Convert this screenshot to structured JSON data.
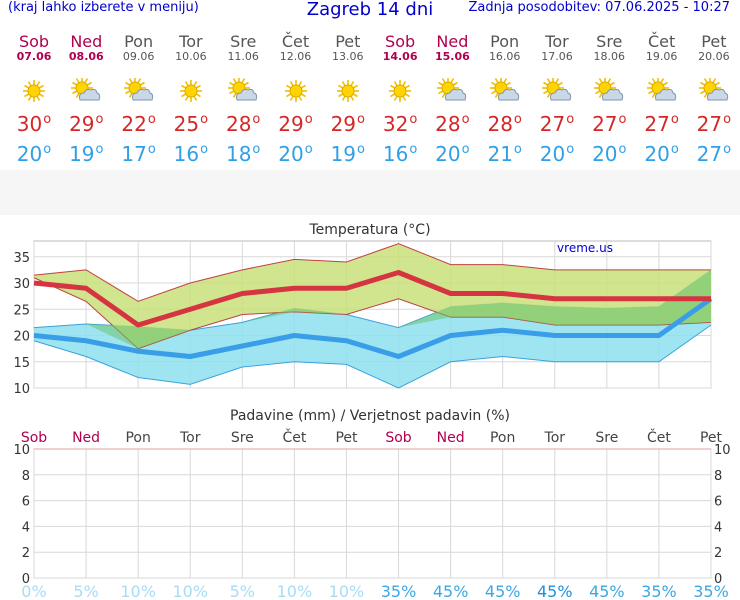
{
  "header": {
    "menu_hint": "(kraj lahko izberete v meniju)",
    "title": "Zagreb 14 dni",
    "last_update": "Zadnja posodobitev: 07.06.2025 - 10:27"
  },
  "days": [
    {
      "name": "Sob",
      "date": "07.06",
      "weekend": true,
      "icon": "sun-icon",
      "tmax": "30",
      "tmin": "20"
    },
    {
      "name": "Ned",
      "date": "08.06",
      "weekend": true,
      "icon": "sun-cloud-icon",
      "tmax": "29",
      "tmin": "19"
    },
    {
      "name": "Pon",
      "date": "09.06",
      "weekend": false,
      "icon": "sun-cloud-icon",
      "tmax": "22",
      "tmin": "17"
    },
    {
      "name": "Tor",
      "date": "10.06",
      "weekend": false,
      "icon": "sun-icon",
      "tmax": "25",
      "tmin": "16"
    },
    {
      "name": "Sre",
      "date": "11.06",
      "weekend": false,
      "icon": "sun-cloud-icon",
      "tmax": "28",
      "tmin": "18"
    },
    {
      "name": "Čet",
      "date": "12.06",
      "weekend": false,
      "icon": "sun-icon",
      "tmax": "29",
      "tmin": "20"
    },
    {
      "name": "Pet",
      "date": "13.06",
      "weekend": false,
      "icon": "sun-icon",
      "tmax": "29",
      "tmin": "19"
    },
    {
      "name": "Sob",
      "date": "14.06",
      "weekend": true,
      "icon": "sun-icon",
      "tmax": "32",
      "tmin": "16"
    },
    {
      "name": "Ned",
      "date": "15.06",
      "weekend": true,
      "icon": "sun-cloud-icon",
      "tmax": "28",
      "tmin": "20"
    },
    {
      "name": "Pon",
      "date": "16.06",
      "weekend": false,
      "icon": "sun-cloud-icon",
      "tmax": "28",
      "tmin": "21"
    },
    {
      "name": "Tor",
      "date": "17.06",
      "weekend": false,
      "icon": "sun-cloud-icon",
      "tmax": "27",
      "tmin": "20"
    },
    {
      "name": "Sre",
      "date": "18.06",
      "weekend": false,
      "icon": "sun-cloud-icon",
      "tmax": "27",
      "tmin": "20"
    },
    {
      "name": "Čet",
      "date": "19.06",
      "weekend": false,
      "icon": "sun-cloud-icon",
      "tmax": "27",
      "tmin": "20"
    },
    {
      "name": "Pet",
      "date": "20.06",
      "weekend": false,
      "icon": "sun-cloud-icon",
      "tmax": "27",
      "tmin": "27"
    }
  ],
  "chart_data": [
    {
      "type": "line",
      "title": "Temperatura (°C)",
      "watermark": "vreme.us",
      "ylim": [
        10,
        38
      ],
      "yticks": [
        "10",
        "15",
        "20",
        "25",
        "30",
        "35"
      ],
      "categories": [
        "07.06",
        "08.06",
        "09.06",
        "10.06",
        "11.06",
        "12.06",
        "13.06",
        "14.06",
        "15.06",
        "16.06",
        "17.06",
        "18.06",
        "19.06",
        "20.06"
      ],
      "series": [
        {
          "key": "max",
          "color": "#d63440",
          "values": [
            30,
            29,
            22,
            25,
            28,
            29,
            29,
            32,
            28,
            28,
            27,
            27,
            27,
            27
          ]
        },
        {
          "key": "min",
          "color": "#3a9de8",
          "values": [
            20,
            19,
            17,
            16,
            18,
            20,
            19,
            16,
            20,
            21,
            20,
            20,
            20,
            27
          ]
        },
        {
          "key": "max_upper",
          "color": "#c8e07a",
          "values": [
            31.5,
            32.5,
            26.5,
            30,
            32.5,
            34.5,
            34,
            37.5,
            33.5,
            33.5,
            32.5,
            32.5,
            32.5,
            32.5
          ]
        },
        {
          "key": "max_lower",
          "color": "#c8e07a",
          "values": [
            31,
            26.5,
            17.5,
            21,
            24,
            24.5,
            24,
            27,
            23.5,
            23.5,
            22,
            22,
            22,
            22.5
          ]
        },
        {
          "key": "min_upper",
          "color": "#8ee0ef",
          "values": [
            21.5,
            22.2,
            21.7,
            21,
            22.5,
            25.2,
            24,
            21.5,
            25.5,
            26.2,
            25.5,
            25.2,
            25.5,
            32.5
          ]
        },
        {
          "key": "min_lower",
          "color": "#8ee0ef",
          "values": [
            19,
            16,
            12,
            10.7,
            14,
            15,
            14.5,
            10,
            15,
            16,
            15,
            15,
            15,
            22
          ]
        }
      ],
      "grid": true
    },
    {
      "type": "bar",
      "title": "Padavine (mm) / Verjetnost padavin (%)",
      "ylim": [
        0,
        10
      ],
      "yticks": [
        "0",
        "2",
        "4",
        "6",
        "8",
        "10"
      ],
      "categories": [
        "Sob",
        "Ned",
        "Pon",
        "Tor",
        "Sre",
        "Čet",
        "Pet",
        "Sob",
        "Ned",
        "Pon",
        "Tor",
        "Sre",
        "Čet",
        "Pet"
      ],
      "values": [
        0,
        0,
        0,
        0,
        0,
        0,
        0,
        0,
        0,
        0,
        0,
        0,
        0,
        0
      ],
      "probability": [
        "0%",
        "5%",
        "10%",
        "10%",
        "5%",
        "10%",
        "10%",
        "35%",
        "45%",
        "45%",
        "45%",
        "45%",
        "35%",
        "35%"
      ],
      "probability_colors": [
        "#a8dcf4",
        "#a8dcf4",
        "#a8dcf4",
        "#a8dcf4",
        "#a8dcf4",
        "#a8dcf4",
        "#a8dcf4",
        "#3aa8e4",
        "#3aa8e4",
        "#3aa8e4",
        "#1e90e0",
        "#3aa8e4",
        "#3aa8e4",
        "#3aa8e4"
      ],
      "grid": true
    }
  ],
  "colors": {
    "weekend": "#b0004e",
    "weekday": "#555555",
    "title": "#0000cc"
  }
}
